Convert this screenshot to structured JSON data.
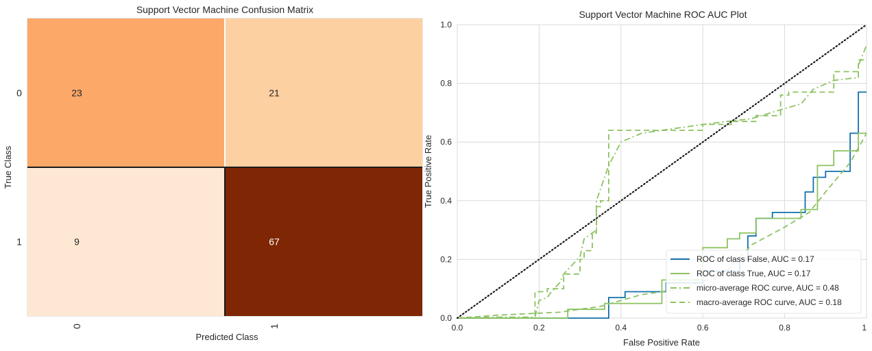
{
  "chart_data": [
    {
      "type": "heatmap",
      "title": "Support Vector Machine Confusion Matrix",
      "xlabel": "Predicted Class",
      "ylabel": "True Class",
      "x_categories": [
        "0",
        "1"
      ],
      "y_categories": [
        "0",
        "1"
      ],
      "values": [
        [
          23,
          21
        ],
        [
          9,
          67
        ]
      ],
      "cell_colors": [
        [
          "#fca869",
          "#fdd0a2"
        ],
        [
          "#fee8d3",
          "#7f2704"
        ]
      ]
    },
    {
      "type": "line",
      "title": "Support Vector Machine ROC AUC Plot",
      "xlabel": "False Positive Rate",
      "ylabel": "True Positive Rate",
      "xlim": [
        0,
        1
      ],
      "ylim": [
        0,
        1
      ],
      "xticks": [
        "0.0",
        "0.2",
        "0.4",
        "0.6",
        "0.8",
        "1"
      ],
      "yticks": [
        "0.0",
        "0.2",
        "0.4",
        "0.6",
        "0.8",
        "1.0"
      ],
      "grid": true,
      "legend_position": "lower right",
      "series": [
        {
          "name": "ROC of class False, AUC = 0.17",
          "color": "#1170aa",
          "style": "solid",
          "x": [
            0,
            0.37,
            0.37,
            0.41,
            0.41,
            0.51,
            0.51,
            0.6,
            0.6,
            0.69,
            0.69,
            0.71,
            0.71,
            0.73,
            0.73,
            0.77,
            0.77,
            0.85,
            0.85,
            0.87,
            0.87,
            0.9,
            0.9,
            0.96,
            0.96,
            0.98,
            0.98,
            1.0
          ],
          "y": [
            0,
            0,
            0.07,
            0.07,
            0.09,
            0.09,
            0.12,
            0.12,
            0.16,
            0.16,
            0.2,
            0.2,
            0.28,
            0.28,
            0.34,
            0.34,
            0.36,
            0.36,
            0.43,
            0.43,
            0.48,
            0.48,
            0.5,
            0.5,
            0.63,
            0.63,
            0.77,
            0.77
          ]
        },
        {
          "name": "ROC of class True, AUC = 0.17",
          "color": "#8cc261",
          "style": "solid",
          "x": [
            0,
            0.27,
            0.27,
            0.36,
            0.36,
            0.5,
            0.5,
            0.6,
            0.6,
            0.66,
            0.66,
            0.69,
            0.69,
            0.73,
            0.73,
            0.84,
            0.84,
            0.88,
            0.88,
            0.92,
            0.92,
            0.98,
            0.98,
            1.0
          ],
          "y": [
            0,
            0,
            0.03,
            0.03,
            0.05,
            0.05,
            0.13,
            0.13,
            0.24,
            0.24,
            0.27,
            0.27,
            0.29,
            0.29,
            0.34,
            0.34,
            0.37,
            0.37,
            0.52,
            0.52,
            0.57,
            0.57,
            0.63,
            0.63
          ]
        },
        {
          "name": "micro-average ROC curve, AUC = 0.48",
          "color": "#8cc261",
          "style": "dashdot",
          "x": [
            0,
            0.09,
            0.19,
            0.2,
            0.22,
            0.23,
            0.25,
            0.26,
            0.3,
            0.31,
            0.34,
            0.34,
            0.37,
            0.4,
            0.45,
            0.55,
            0.6,
            0.66,
            0.72,
            0.79,
            0.84,
            0.87,
            0.92,
            0.98,
            0.98,
            1.0
          ],
          "y": [
            0,
            0.003,
            0.003,
            0.06,
            0.07,
            0.09,
            0.12,
            0.15,
            0.21,
            0.27,
            0.3,
            0.4,
            0.52,
            0.6,
            0.63,
            0.65,
            0.66,
            0.67,
            0.68,
            0.71,
            0.73,
            0.78,
            0.81,
            0.82,
            0.86,
            0.93
          ]
        },
        {
          "name": "macro-average ROC curve, AUC = 0.18",
          "color": "#8cc261",
          "style": "dashed",
          "x": [
            0,
            0.1,
            0.25,
            0.35,
            0.45,
            0.55,
            0.65,
            0.72,
            0.8,
            0.86,
            0.9,
            0.96,
            1.0
          ],
          "y": [
            0,
            0.01,
            0.02,
            0.04,
            0.08,
            0.1,
            0.15,
            0.25,
            0.31,
            0.36,
            0.43,
            0.53,
            0.63
          ]
        },
        {
          "name": "",
          "color": "#8cc261",
          "style": "dashed",
          "x": [
            0,
            0.15,
            0.19,
            0.19,
            0.22,
            0.22,
            0.26,
            0.26,
            0.3,
            0.3,
            0.31,
            0.31,
            0.33,
            0.33,
            0.34,
            0.34,
            0.35,
            0.35,
            0.37,
            0.37,
            0.6,
            0.6,
            0.67,
            0.67,
            0.73,
            0.73,
            0.79,
            0.79,
            0.81,
            0.81,
            0.92,
            0.92,
            0.98,
            0.98,
            1.0
          ],
          "y": [
            0,
            0,
            0,
            0.09,
            0.09,
            0.1,
            0.1,
            0.15,
            0.15,
            0.2,
            0.2,
            0.23,
            0.23,
            0.29,
            0.29,
            0.38,
            0.38,
            0.4,
            0.4,
            0.64,
            0.64,
            0.66,
            0.66,
            0.67,
            0.67,
            0.69,
            0.69,
            0.76,
            0.76,
            0.77,
            0.77,
            0.84,
            0.84,
            0.88,
            0.88
          ]
        },
        {
          "name": "",
          "color": "#1a1a1a",
          "style": "dotted",
          "x": [
            0,
            1
          ],
          "y": [
            0,
            1
          ]
        }
      ]
    }
  ]
}
